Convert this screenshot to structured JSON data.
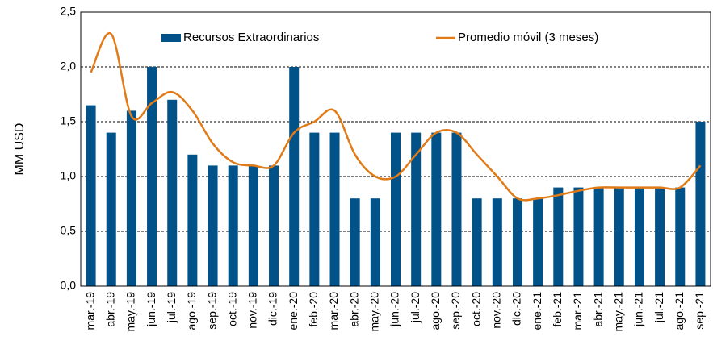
{
  "chart_data": {
    "type": "bar-line",
    "y_label": "MM USD",
    "categories": [
      "mar.-19",
      "abr.-19",
      "may.-19",
      "jun.-19",
      "jul.-19",
      "ago.-19",
      "sep.-19",
      "oct.-19",
      "nov.-19",
      "dic.-19",
      "ene.-20",
      "feb.-20",
      "mar.-20",
      "abr.-20",
      "may.-20",
      "jun.-20",
      "jul.-20",
      "ago.-20",
      "sep.-20",
      "oct.-20",
      "nov.-20",
      "dic.-20",
      "ene.-21",
      "feb.-21",
      "mar.-21",
      "abr.-21",
      "may.-21",
      "jun.-21",
      "jul.-21",
      "ago.-21",
      "sep.-21"
    ],
    "series": [
      {
        "name": "Recursos Extraordinarios",
        "type": "bar",
        "color": "#005288",
        "values": [
          1.65,
          1.4,
          1.6,
          2.0,
          1.7,
          1.2,
          1.1,
          1.1,
          1.1,
          1.1,
          2.0,
          1.4,
          1.4,
          0.8,
          0.8,
          1.4,
          1.4,
          1.4,
          1.4,
          0.8,
          0.8,
          0.8,
          0.8,
          0.9,
          0.9,
          0.9,
          0.9,
          0.9,
          0.9,
          0.9,
          1.5
        ]
      },
      {
        "name": "Promedio móvil (3 meses)",
        "type": "line",
        "color": "#e07b18",
        "values": [
          1.95,
          2.3,
          1.55,
          1.67,
          1.77,
          1.6,
          1.3,
          1.13,
          1.1,
          1.1,
          1.4,
          1.5,
          1.6,
          1.2,
          1.0,
          1.0,
          1.2,
          1.4,
          1.4,
          1.2,
          1.0,
          0.8,
          0.8,
          0.83,
          0.87,
          0.9,
          0.9,
          0.9,
          0.9,
          0.9,
          1.1
        ]
      }
    ],
    "ylim": [
      0,
      2.5
    ],
    "yticks": [
      {
        "value": 0,
        "label": "0,0"
      },
      {
        "value": 0.5,
        "label": "0,5"
      },
      {
        "value": 1,
        "label": "1,0"
      },
      {
        "value": 1.5,
        "label": "1,5"
      },
      {
        "value": 2,
        "label": "2,0"
      },
      {
        "value": 2.5,
        "label": "2,5"
      }
    ],
    "grid": true,
    "legend": "top"
  }
}
